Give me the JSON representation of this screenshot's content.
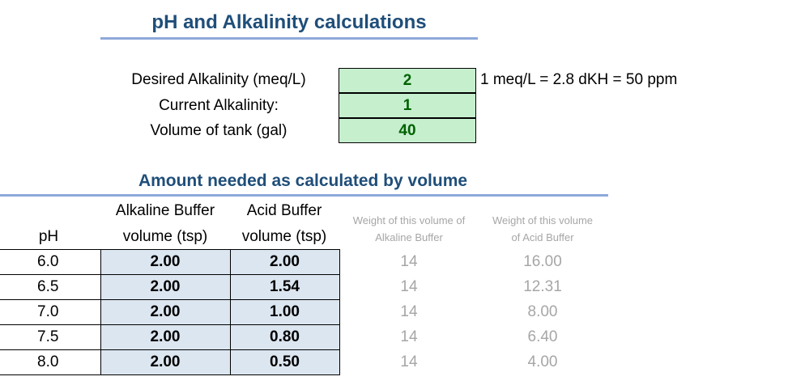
{
  "title": "pH and Alkalinity calculations",
  "inputs": [
    {
      "label": "Desired Alkalinity (meq/L)",
      "value": "2"
    },
    {
      "label": "Current Alkalinity:",
      "value": "1"
    },
    {
      "label": "Volume of tank (gal)",
      "value": "40"
    }
  ],
  "conversion_note": "1 meq/L = 2.8 dKH = 50 ppm",
  "subtitle": "Amount needed as calculated by volume",
  "table": {
    "headers": {
      "ph": "pH",
      "alk_line1": "Alkaline Buffer",
      "alk_line2": "volume (tsp)",
      "acid_line1": "Acid Buffer",
      "acid_line2": "volume (tsp)",
      "w_alk_line1": "Weight of this volume of",
      "w_alk_line2": "Alkaline Buffer",
      "w_acid_line1": "Weight of this volume",
      "w_acid_line2": "of Acid Buffer"
    },
    "rows": [
      {
        "ph": "6.0",
        "alk": "2.00",
        "acid": "2.00",
        "w_alk": "14",
        "w_acid": "16.00"
      },
      {
        "ph": "6.5",
        "alk": "2.00",
        "acid": "1.54",
        "w_alk": "14",
        "w_acid": "12.31"
      },
      {
        "ph": "7.0",
        "alk": "2.00",
        "acid": "1.00",
        "w_alk": "14",
        "w_acid": "8.00"
      },
      {
        "ph": "7.5",
        "alk": "2.00",
        "acid": "0.80",
        "w_alk": "14",
        "w_acid": "6.40"
      },
      {
        "ph": "8.0",
        "alk": "2.00",
        "acid": "0.50",
        "w_alk": "14",
        "w_acid": "4.00"
      }
    ]
  }
}
